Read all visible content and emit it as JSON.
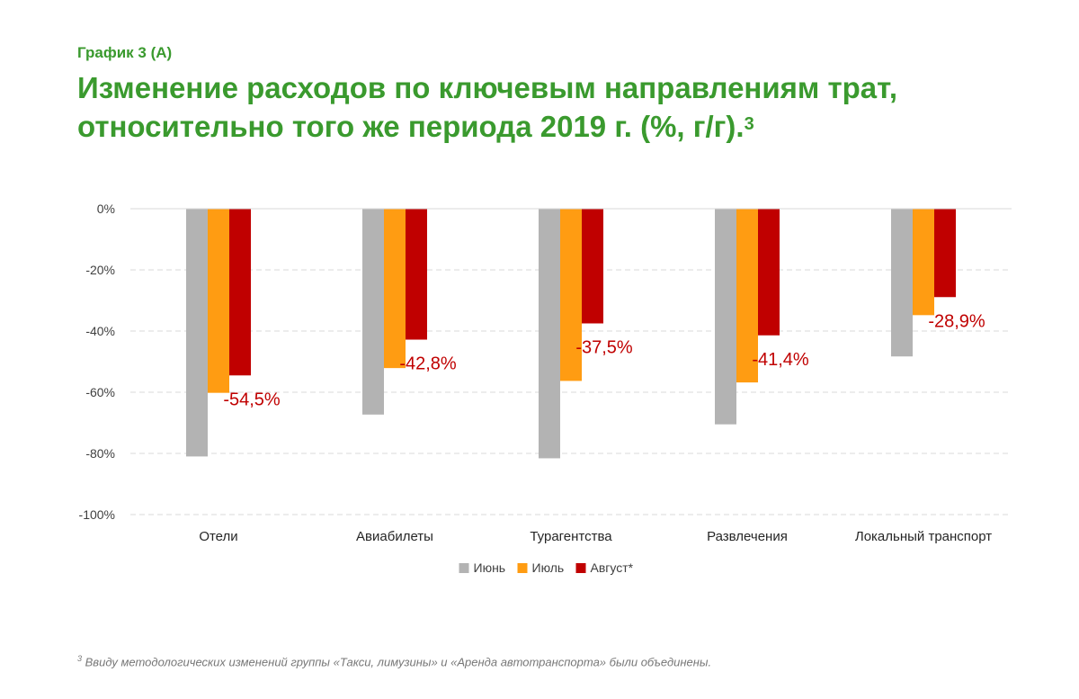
{
  "header": {
    "eyebrow": "График 3 (А)",
    "title_line1": "Изменение расходов по ключевым направлениям трат,",
    "title_line2": "относительно того же периода 2019 г.  (%, г/г).",
    "title_sup": "3"
  },
  "footnote": {
    "marker": "3",
    "text": "Ввиду методологических изменений группы «Такси, лимузины» и «Аренда автотранспорта» были объединены."
  },
  "chart_data": {
    "type": "bar",
    "categories": [
      "Отели",
      "Авиабилеты",
      "Турагентства",
      "Развлечения",
      "Локальный транспорт"
    ],
    "series": [
      {
        "name": "Июнь",
        "color": "#b3b3b3",
        "values": [
          -81,
          -67.3,
          -81.6,
          -70.5,
          -48.3
        ]
      },
      {
        "name": "Июль",
        "color": "#ff9c12",
        "values": [
          -60.2,
          -52.1,
          -56.3,
          -56.8,
          -34.8
        ]
      },
      {
        "name": "Август*",
        "color": "#c00000",
        "values": [
          -54.5,
          -42.8,
          -37.5,
          -41.4,
          -28.9
        ],
        "labels": [
          "-54,5%",
          "-42,8%",
          "-37,5%",
          "-41,4%",
          "-28,9%"
        ]
      }
    ],
    "ylim": [
      -100,
      0
    ],
    "yticks": [
      0,
      -20,
      -40,
      -60,
      -80,
      -100
    ],
    "ytick_labels": [
      "0%",
      "-20%",
      "-40%",
      "-60%",
      "-80%",
      "-100%"
    ],
    "label_color": "#c00000",
    "grid": true,
    "legend_position": "bottom"
  }
}
